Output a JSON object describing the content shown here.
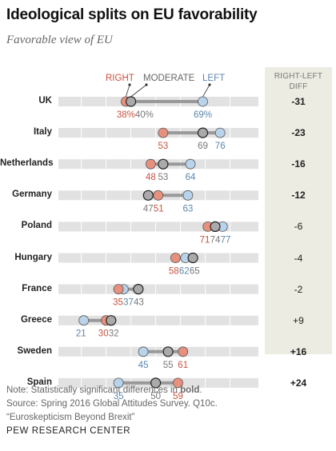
{
  "title": "Ideological splits on EU favorability",
  "subtitle": "Favorable view of EU",
  "diff_header_line1": "RIGHT-LEFT",
  "diff_header_line2": "DIFF",
  "legend": {
    "right": "RIGHT",
    "moderate": "MODERATE",
    "left": "LEFT"
  },
  "colors": {
    "right": "#e8907e",
    "moderate": "#aaaaaa",
    "left": "#b9d3ea",
    "right_text": "#c8523e",
    "left_text": "#5b87ad",
    "moderate_text": "#777777",
    "connector": "#999999",
    "track": "#e2e2e2",
    "panel": "#ecece2"
  },
  "footer": {
    "note_prefix": "Note: Statistically significant differences in ",
    "note_bold": "bold",
    "note_suffix": ".",
    "source": "Source: Spring 2016 Global Attitudes Survey. Q10c.",
    "report": "“Euroskepticism Beyond Brexit”",
    "org": "PEW RESEARCH CENTER"
  },
  "chart_data": {
    "type": "dot",
    "title": "Ideological splits on EU favorability",
    "subtitle": "Favorable view of EU",
    "series": [
      {
        "name": "RIGHT"
      },
      {
        "name": "MODERATE"
      },
      {
        "name": "LEFT"
      }
    ],
    "rows": [
      {
        "country": "UK",
        "right": 38,
        "moderate": 40,
        "left": 69,
        "right_label": "38%",
        "moderate_label": "40%",
        "left_label": "69%",
        "diff": "-31",
        "significant": true
      },
      {
        "country": "Italy",
        "right": 53,
        "moderate": 69,
        "left": 76,
        "right_label": "53",
        "moderate_label": "69",
        "left_label": "76",
        "diff": "-23",
        "significant": true
      },
      {
        "country": "Netherlands",
        "right": 48,
        "moderate": 53,
        "left": 64,
        "right_label": "48",
        "moderate_label": "53",
        "left_label": "64",
        "diff": "-16",
        "significant": true
      },
      {
        "country": "Germany",
        "right": 51,
        "moderate": 47,
        "left": 63,
        "right_label": "51",
        "moderate_label": "47",
        "left_label": "63",
        "diff": "-12",
        "significant": true
      },
      {
        "country": "Poland",
        "right": 71,
        "moderate": 74,
        "left": 77,
        "right_label": "71",
        "moderate_label": "74",
        "left_label": "77",
        "diff": "-6",
        "significant": false
      },
      {
        "country": "Hungary",
        "right": 58,
        "moderate": 65,
        "left": 62,
        "right_label": "58",
        "moderate_label": "65",
        "left_label": "62",
        "diff": "-4",
        "significant": false
      },
      {
        "country": "France",
        "right": 35,
        "moderate": 43,
        "left": 37,
        "right_label": "35",
        "moderate_label": "43",
        "left_label": "37",
        "diff": "-2",
        "significant": false
      },
      {
        "country": "Greece",
        "right": 30,
        "moderate": 32,
        "left": 21,
        "right_label": "30",
        "moderate_label": "32",
        "left_label": "21",
        "diff": "+9",
        "significant": false
      },
      {
        "country": "Sweden",
        "right": 61,
        "moderate": 55,
        "left": 45,
        "right_label": "61",
        "moderate_label": "55",
        "left_label": "45",
        "diff": "+16",
        "significant": true
      },
      {
        "country": "Spain",
        "right": 59,
        "moderate": 50,
        "left": 35,
        "right_label": "59",
        "moderate_label": "50",
        "left_label": "35",
        "diff": "+24",
        "significant": true
      }
    ]
  }
}
